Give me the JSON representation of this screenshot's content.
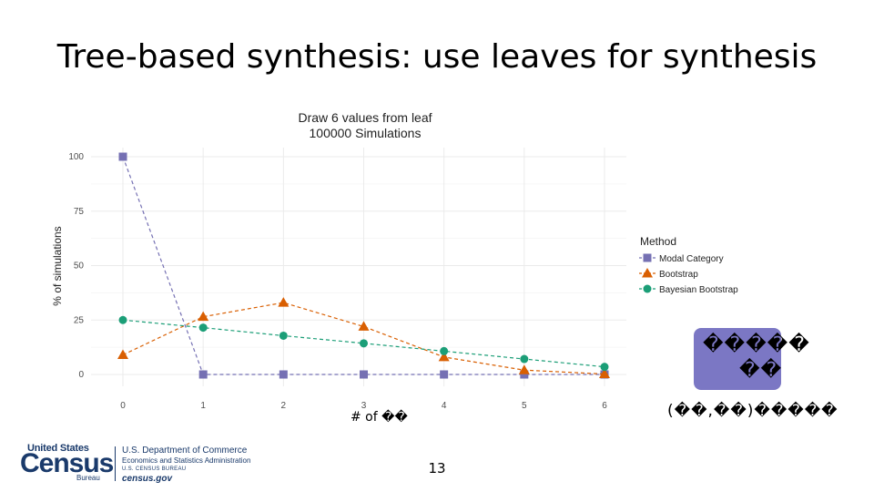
{
  "slide": {
    "title": "Tree-based synthesis: use leaves for synthesis",
    "page_number": "13",
    "xlabel_text": "# of ��",
    "annotation_lines": [
      "�����",
      "��"
    ],
    "formula_text": "(��,��)�����"
  },
  "footer": {
    "logo_top": "United States",
    "logo_main": "Census",
    "logo_sub": "Bureau",
    "dept_line1": "U.S. Department of Commerce",
    "dept_line2": "Economics and Statistics Administration",
    "dept_line3": "U.S. CENSUS BUREAU",
    "dept_line4": "census.gov"
  },
  "colors": {
    "modal": "#7570b3",
    "bootstrap": "#d95f02",
    "bayesian": "#1b9e77",
    "annotation_box": "#7b77c4",
    "census_blue": "#1a3a6b"
  },
  "chart_data": {
    "type": "line",
    "title": "Draw 6 values from leaf",
    "subtitle": "100000 Simulations",
    "xlabel": "",
    "ylabel": "% of simulations",
    "x": [
      0,
      1,
      2,
      3,
      4,
      5,
      6
    ],
    "xlim": [
      0,
      6
    ],
    "ylim": [
      0,
      100
    ],
    "yticks": [
      0,
      25,
      50,
      75,
      100
    ],
    "grid": true,
    "legend_title": "Method",
    "legend_position": "right",
    "series": [
      {
        "name": "Modal Category",
        "marker": "square",
        "color": "#7570b3",
        "values": [
          100,
          0,
          0,
          0,
          0,
          0,
          0
        ]
      },
      {
        "name": "Bootstrap",
        "marker": "triangle",
        "color": "#d95f02",
        "values": [
          9,
          26.5,
          33,
          22,
          8,
          2,
          0.2
        ]
      },
      {
        "name": "Bayesian Bootstrap",
        "marker": "circle",
        "color": "#1b9e77",
        "values": [
          25,
          21.5,
          17.8,
          14.3,
          10.7,
          7.1,
          3.5
        ]
      }
    ]
  }
}
